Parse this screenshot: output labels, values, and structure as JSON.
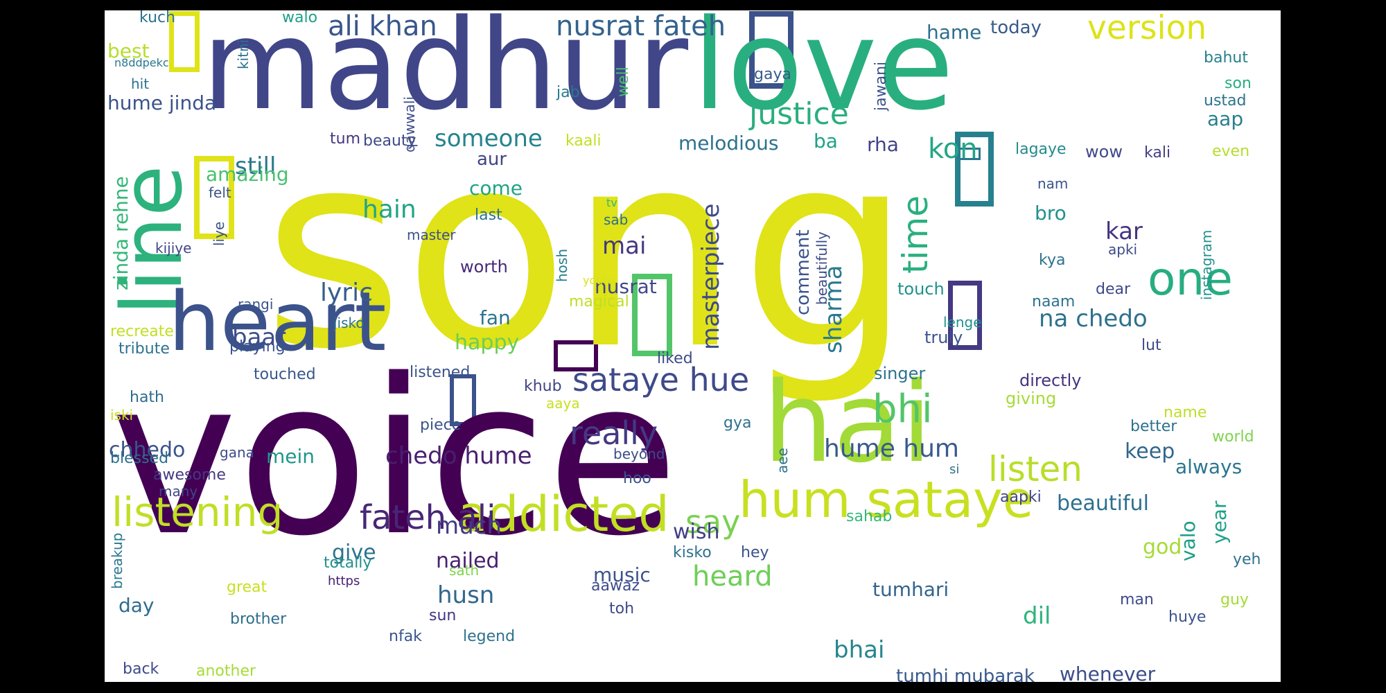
{
  "words": [
    {
      "text": "song",
      "c": "#dfe318"
    },
    {
      "text": "voice",
      "c": "#440154"
    },
    {
      "text": "madhur",
      "c": "#404688"
    },
    {
      "text": "love",
      "c": "#29af7f"
    },
    {
      "text": "line",
      "c": "#2db27d"
    },
    {
      "text": "heart",
      "c": "#3b528b"
    },
    {
      "text": "hai",
      "c": "#a2da37"
    },
    {
      "text": "hum sataye",
      "c": "#c8e020"
    },
    {
      "text": "addicted",
      "c": "#c2df23"
    },
    {
      "text": "listening",
      "c": "#c0df25"
    },
    {
      "text": "fateh ali",
      "c": "#482677"
    },
    {
      "text": "one",
      "c": "#27ad81"
    },
    {
      "text": "ali khan",
      "c": "#39568c"
    },
    {
      "text": "nusrat fateh",
      "c": "#33628d"
    },
    {
      "text": "version",
      "c": "#dde318"
    },
    {
      "text": "justice",
      "c": "#29af7f"
    },
    {
      "text": "sataye hue",
      "c": "#3e4a89"
    },
    {
      "text": "really",
      "c": "#443983"
    },
    {
      "text": "bhi",
      "c": "#52c569"
    },
    {
      "text": "time",
      "c": "#2ab07f"
    },
    {
      "text": "listen",
      "c": "#b8de29"
    },
    {
      "text": "hume hum",
      "c": "#38598c"
    },
    {
      "text": "chedo hume",
      "c": "#481f70"
    },
    {
      "text": "say",
      "c": "#7ad151"
    },
    {
      "text": "heard",
      "c": "#6ece58"
    },
    {
      "text": "someone",
      "c": "#25848e"
    },
    {
      "text": "masterpiece",
      "c": "#3e4989"
    },
    {
      "text": "hain",
      "c": "#20a486"
    },
    {
      "text": "mai",
      "c": "#453781"
    },
    {
      "text": "sharma",
      "c": "#2a788e"
    },
    {
      "text": "na chedo",
      "c": "#2d718e"
    },
    {
      "text": "kon",
      "c": "#22a785"
    },
    {
      "text": "kar",
      "c": "#463480"
    },
    {
      "text": "bro",
      "c": "#21918c"
    },
    {
      "text": "lyric",
      "c": "#365d8d"
    },
    {
      "text": "nusrat",
      "c": "#3f4788"
    },
    {
      "text": "zinda rehne",
      "c": "#35b779"
    },
    {
      "text": "still",
      "c": "#2a788e"
    },
    {
      "text": "baar",
      "c": "#3e4c8a"
    },
    {
      "text": "chhedo",
      "c": "#3a548c"
    },
    {
      "text": "much",
      "c": "#443a83"
    },
    {
      "text": "nailed",
      "c": "#482071"
    },
    {
      "text": "husn",
      "c": "#31688e"
    },
    {
      "text": "give",
      "c": "#2c728e"
    },
    {
      "text": "music",
      "c": "#3b528b"
    },
    {
      "text": "wish",
      "c": "#433e85"
    },
    {
      "text": "tumhari",
      "c": "#32648e"
    },
    {
      "text": "dil",
      "c": "#2eb37c"
    },
    {
      "text": "bhai",
      "c": "#25858e"
    },
    {
      "text": "tumhi mubarak",
      "c": "#38598c"
    },
    {
      "text": "whenever",
      "c": "#3d4d8a"
    },
    {
      "text": "beautiful",
      "c": "#2d708e"
    },
    {
      "text": "keep",
      "c": "#31678e"
    },
    {
      "text": "always",
      "c": "#2a768e"
    },
    {
      "text": "god",
      "c": "#a5db36"
    },
    {
      "text": "valo",
      "c": "#1e9c89"
    },
    {
      "text": "year",
      "c": "#1fa188"
    },
    {
      "text": "best",
      "c": "#b5de2b"
    },
    {
      "text": "hume jinda",
      "c": "#3b528b"
    },
    {
      "text": "amazing",
      "c": "#48c16e"
    },
    {
      "text": "felt",
      "c": "#3a538b"
    },
    {
      "text": "come",
      "c": "#20a386"
    },
    {
      "text": "aur",
      "c": "#414487"
    },
    {
      "text": "happy",
      "c": "#6ccd5a"
    },
    {
      "text": "fan",
      "c": "#2c738e"
    },
    {
      "text": "mein",
      "c": "#1f968b"
    },
    {
      "text": "day",
      "c": "#2e6d8e"
    },
    {
      "text": "melodious",
      "c": "#2c718e"
    },
    {
      "text": "ba",
      "c": "#1fa287"
    },
    {
      "text": "rha",
      "c": "#414287"
    },
    {
      "text": "comment",
      "c": "#3a538b"
    },
    {
      "text": "aap",
      "c": "#277f8e"
    },
    {
      "text": "hame",
      "c": "#2e6e8e"
    },
    {
      "text": "today",
      "c": "#38598c"
    },
    {
      "text": "kali",
      "c": "#433e85"
    },
    {
      "text": "even",
      "c": "#b5de2b"
    },
    {
      "text": "wow",
      "c": "#3e4a89"
    },
    {
      "text": "lagaye",
      "c": "#238a8d"
    },
    {
      "text": "son",
      "c": "#27ad81"
    },
    {
      "text": "ustad",
      "c": "#2c738e"
    },
    {
      "text": "bahut",
      "c": "#277f8e"
    },
    {
      "text": "kuch",
      "c": "#2c728e"
    },
    {
      "text": "walo",
      "c": "#1f9e89"
    },
    {
      "text": "kitni",
      "c": "#2d708e"
    },
    {
      "text": "n8ddpekc",
      "c": "#2a788e"
    },
    {
      "text": "hit",
      "c": "#2c728e"
    },
    {
      "text": "qawwali",
      "c": "#3e4c8a"
    },
    {
      "text": "jab",
      "c": "#2a788e"
    },
    {
      "text": "well",
      "c": "#48c16e"
    },
    {
      "text": "jawani",
      "c": "#3b528b"
    },
    {
      "text": "gaya",
      "c": "#365c8d"
    },
    {
      "text": "tum",
      "c": "#453581"
    },
    {
      "text": "beauty",
      "c": "#3e4a89"
    },
    {
      "text": "kaali",
      "c": "#c2df23"
    },
    {
      "text": "last",
      "c": "#2c728e"
    },
    {
      "text": "tv",
      "c": "#35b779"
    },
    {
      "text": "sab",
      "c": "#2e6e8e"
    },
    {
      "text": "master",
      "c": "#3b528b"
    },
    {
      "text": "hosh",
      "c": "#277f8e"
    },
    {
      "text": "youtu",
      "c": "#d8e219"
    },
    {
      "text": "worth",
      "c": "#482878"
    },
    {
      "text": "magical",
      "c": "#bddf26"
    },
    {
      "text": "liye",
      "c": "#3a538b"
    },
    {
      "text": "kijiye",
      "c": "#414487"
    },
    {
      "text": "rangi",
      "c": "#3a548c"
    },
    {
      "text": "jisko",
      "c": "#2c728e"
    },
    {
      "text": "recreate",
      "c": "#c2df23"
    },
    {
      "text": "tribute",
      "c": "#2c728e"
    },
    {
      "text": "playing",
      "c": "#3a548c"
    },
    {
      "text": "touched",
      "c": "#39558c"
    },
    {
      "text": "listened",
      "c": "#3b528b"
    },
    {
      "text": "liked",
      "c": "#3e4a89"
    },
    {
      "text": "khub",
      "c": "#414487"
    },
    {
      "text": "aaya",
      "c": "#c8e020"
    },
    {
      "text": "hath",
      "c": "#2f6c8e"
    },
    {
      "text": "iski",
      "c": "#c8e020"
    },
    {
      "text": "piece",
      "c": "#3b528b"
    },
    {
      "text": "gya",
      "c": "#2c728e"
    },
    {
      "text": "blessed",
      "c": "#2d708e"
    },
    {
      "text": "gana",
      "c": "#3e4c8a"
    },
    {
      "text": "beyond",
      "c": "#3e4a89"
    },
    {
      "text": "aee",
      "c": "#2c728e"
    },
    {
      "text": "awesome",
      "c": "#453882"
    },
    {
      "text": "many",
      "c": "#3f4788"
    },
    {
      "text": "hoo",
      "c": "#3a548c"
    },
    {
      "text": "breakup",
      "c": "#2a788e"
    },
    {
      "text": "great",
      "c": "#c8e020"
    },
    {
      "text": "totally",
      "c": "#21918c"
    },
    {
      "text": "sath",
      "c": "#7fd34e"
    },
    {
      "text": "https",
      "c": "#482071"
    },
    {
      "text": "kisko",
      "c": "#2c728e"
    },
    {
      "text": "hey",
      "c": "#3b528b"
    },
    {
      "text": "aawaz",
      "c": "#3e4a89"
    },
    {
      "text": "sahab",
      "c": "#35b779"
    },
    {
      "text": "brother",
      "c": "#2e6e8e"
    },
    {
      "text": "sun",
      "c": "#453581"
    },
    {
      "text": "toh",
      "c": "#3e4a89"
    },
    {
      "text": "nfak",
      "c": "#3a548c"
    },
    {
      "text": "legend",
      "c": "#2c728e"
    },
    {
      "text": "back",
      "c": "#3e4a89"
    },
    {
      "text": "another",
      "c": "#a5db36"
    },
    {
      "text": "beautifully",
      "c": "#3e4c8a"
    },
    {
      "text": "singer",
      "c": "#2c728e"
    },
    {
      "text": "directly",
      "c": "#46337f"
    },
    {
      "text": "giving",
      "c": "#a5db36"
    },
    {
      "text": "truly",
      "c": "#3a548c"
    },
    {
      "text": "lenge",
      "c": "#21918c"
    },
    {
      "text": "touch",
      "c": "#21918c"
    },
    {
      "text": "naam",
      "c": "#2c728e"
    },
    {
      "text": "dear",
      "c": "#3e4a89"
    },
    {
      "text": "kya",
      "c": "#2c728e"
    },
    {
      "text": "apki",
      "c": "#3e4a89"
    },
    {
      "text": "nam",
      "c": "#3a548c"
    },
    {
      "text": "instagram",
      "c": "#21918c"
    },
    {
      "text": "lut",
      "c": "#3e4a89"
    },
    {
      "text": "better",
      "c": "#2c728e"
    },
    {
      "text": "name",
      "c": "#bddf26"
    },
    {
      "text": "world",
      "c": "#7fd34e"
    },
    {
      "text": "si",
      "c": "#2c728e"
    },
    {
      "text": "aapki",
      "c": "#414487"
    },
    {
      "text": "man",
      "c": "#3e4a89"
    },
    {
      "text": "huye",
      "c": "#3a548c"
    },
    {
      "text": "guy",
      "c": "#a5db36"
    },
    {
      "text": "yeh",
      "c": "#2c728e"
    }
  ]
}
